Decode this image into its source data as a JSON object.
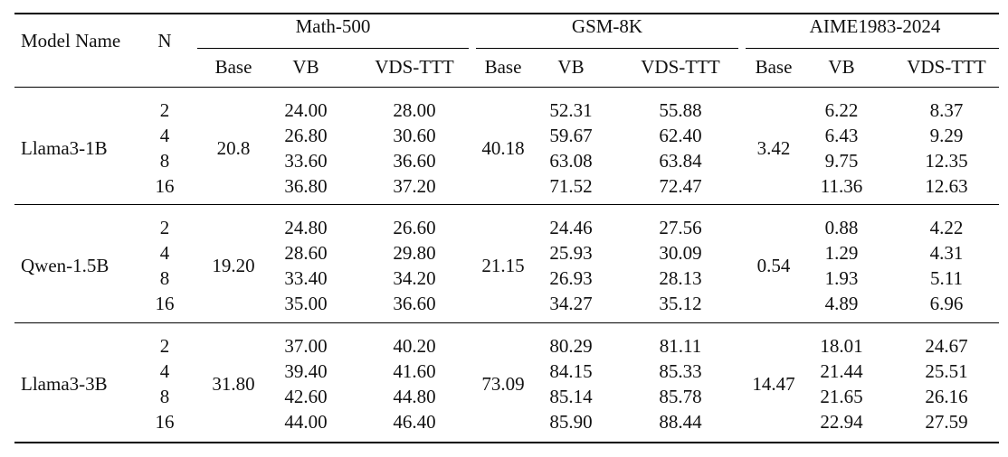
{
  "header": {
    "model_name": "Model Name",
    "n": "N",
    "groups": [
      "Math-500",
      "GSM-8K",
      "AIME1983-2024"
    ],
    "subcols": [
      "Base",
      "VB",
      "VDS-TTT",
      "Base",
      "VB",
      "VDS-TTT",
      "Base",
      "VB",
      "VDS-TTT"
    ]
  },
  "blocks": [
    {
      "model": "Llama3-1B",
      "n": [
        "2",
        "4",
        "8",
        "16"
      ],
      "math_base": "20.8",
      "math_vb": [
        "24.00",
        "26.80",
        "33.60",
        "36.80"
      ],
      "math_vds": [
        "28.00",
        "30.60",
        "36.60",
        "37.20"
      ],
      "gsm_base": "40.18",
      "gsm_vb": [
        "52.31",
        "59.67",
        "63.08",
        "71.52"
      ],
      "gsm_vds": [
        "55.88",
        "62.40",
        "63.84",
        "72.47"
      ],
      "aime_base": "3.42",
      "aime_vb": [
        "6.22",
        "6.43",
        "9.75",
        "11.36"
      ],
      "aime_vds": [
        "8.37",
        "9.29",
        "12.35",
        "12.63"
      ]
    },
    {
      "model": "Qwen-1.5B",
      "n": [
        "2",
        "4",
        "8",
        "16"
      ],
      "math_base": "19.20",
      "math_vb": [
        "24.80",
        "28.60",
        "33.40",
        "35.00"
      ],
      "math_vds": [
        "26.60",
        "29.80",
        "34.20",
        "36.60"
      ],
      "gsm_base": "21.15",
      "gsm_vb": [
        "24.46",
        "25.93",
        "26.93",
        "34.27"
      ],
      "gsm_vds": [
        "27.56",
        "30.09",
        "28.13",
        "35.12"
      ],
      "aime_base": "0.54",
      "aime_vb": [
        "0.88",
        "1.29",
        "1.93",
        "4.89"
      ],
      "aime_vds": [
        "4.22",
        "4.31",
        "5.11",
        "6.96"
      ]
    },
    {
      "model": "Llama3-3B",
      "n": [
        "2",
        "4",
        "8",
        "16"
      ],
      "math_base": "31.80",
      "math_vb": [
        "37.00",
        "39.40",
        "42.60",
        "44.00"
      ],
      "math_vds": [
        "40.20",
        "41.60",
        "44.80",
        "46.40"
      ],
      "gsm_base": "73.09",
      "gsm_vb": [
        "80.29",
        "84.15",
        "85.14",
        "85.90"
      ],
      "gsm_vds": [
        "81.11",
        "85.33",
        "85.78",
        "88.44"
      ],
      "aime_base": "14.47",
      "aime_vb": [
        "18.01",
        "21.44",
        "21.65",
        "22.94"
      ],
      "aime_vds": [
        "24.67",
        "25.51",
        "26.16",
        "27.59"
      ]
    }
  ]
}
